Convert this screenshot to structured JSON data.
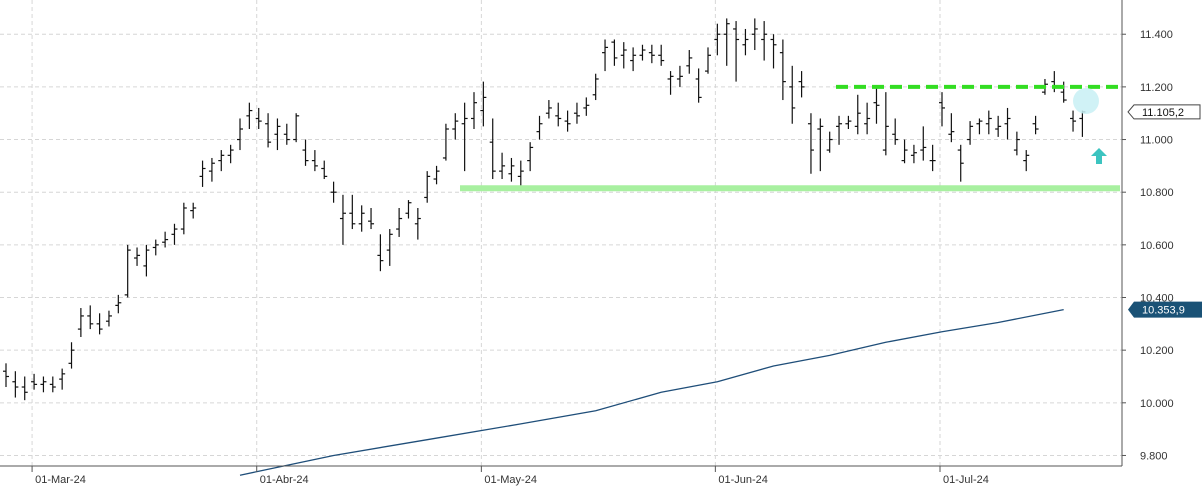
{
  "chart_data": {
    "type": "ohlc",
    "title": "",
    "xlabel": "",
    "ylabel": "",
    "ylim": [
      9760,
      11530
    ],
    "y_ticks": [
      9800,
      10000,
      10200,
      10400,
      10600,
      10800,
      11000,
      11200,
      11400
    ],
    "y_tick_labels": [
      "9.800",
      "10.000",
      "10.200",
      "10.400",
      "10.600",
      "10.800",
      "11.000",
      "11.200",
      "11.400"
    ],
    "x_tick_labels": [
      {
        "label": "01-Mar-24",
        "index": 3
      },
      {
        "label": "01-Abr-24",
        "index": 27
      },
      {
        "label": "01-May-24",
        "index": 51
      },
      {
        "label": "01-Jun-24",
        "index": 76
      },
      {
        "label": "01-Jul-24",
        "index": 100
      }
    ],
    "grid": true,
    "last_price_label": "11.105,2",
    "moving_average_label": "10.353,9",
    "colors": {
      "bars": "#111111",
      "moving_average": "#1f4e79",
      "ma_badge": "#1a5276",
      "resistance": "#33dd22",
      "support": "#a8f0a0",
      "marker_circle": "#c8f0f5",
      "arrow": "#3cc4c0"
    },
    "resistance_level": 11200,
    "support_level": 10815,
    "moving_average": [
      {
        "i": 25,
        "v": 9725
      },
      {
        "i": 27,
        "v": 9740
      },
      {
        "i": 35,
        "v": 9800
      },
      {
        "i": 45,
        "v": 9860
      },
      {
        "i": 55,
        "v": 9920
      },
      {
        "i": 63,
        "v": 9970
      },
      {
        "i": 70,
        "v": 10040
      },
      {
        "i": 76,
        "v": 10080
      },
      {
        "i": 82,
        "v": 10140
      },
      {
        "i": 88,
        "v": 10180
      },
      {
        "i": 94,
        "v": 10230
      },
      {
        "i": 100,
        "v": 10270
      },
      {
        "i": 106,
        "v": 10305
      },
      {
        "i": 113,
        "v": 10354
      }
    ],
    "ohlc": [
      [
        10120,
        10150,
        10060,
        10100
      ],
      [
        10080,
        10120,
        10020,
        10060
      ],
      [
        10060,
        10100,
        10010,
        10040
      ],
      [
        10080,
        10110,
        10050,
        10070
      ],
      [
        10070,
        10100,
        10040,
        10080
      ],
      [
        10070,
        10100,
        10040,
        10060
      ],
      [
        10090,
        10130,
        10050,
        10110
      ],
      [
        10150,
        10230,
        10130,
        10200
      ],
      [
        10280,
        10360,
        10250,
        10330
      ],
      [
        10330,
        10370,
        10280,
        10300
      ],
      [
        10300,
        10340,
        10260,
        10280
      ],
      [
        10310,
        10350,
        10290,
        10330
      ],
      [
        10370,
        10410,
        10340,
        10380
      ],
      [
        10410,
        10600,
        10400,
        10580
      ],
      [
        10550,
        10590,
        10520,
        10560
      ],
      [
        10520,
        10600,
        10480,
        10580
      ],
      [
        10590,
        10620,
        10560,
        10600
      ],
      [
        10610,
        10650,
        10590,
        10620
      ],
      [
        10640,
        10680,
        10600,
        10660
      ],
      [
        10660,
        10760,
        10640,
        10740
      ],
      [
        10730,
        10760,
        10700,
        10740
      ],
      [
        10860,
        10920,
        10820,
        10890
      ],
      [
        10880,
        10930,
        10840,
        10910
      ],
      [
        10920,
        10960,
        10880,
        10940
      ],
      [
        10940,
        10980,
        10910,
        10960
      ],
      [
        11000,
        11080,
        10960,
        11040
      ],
      [
        11090,
        11140,
        11040,
        11110
      ],
      [
        11080,
        11120,
        11040,
        11070
      ],
      [
        11060,
        11100,
        10970,
        10990
      ],
      [
        11020,
        11080,
        10960,
        11050
      ],
      [
        11020,
        11060,
        10980,
        11000
      ],
      [
        11000,
        11100,
        10990,
        11090
      ],
      [
        10960,
        11000,
        10900,
        10920
      ],
      [
        10920,
        10960,
        10880,
        10900
      ],
      [
        10890,
        10920,
        10850,
        10860
      ],
      [
        10800,
        10840,
        10760,
        10800
      ],
      [
        10700,
        10790,
        10600,
        10720
      ],
      [
        10720,
        10790,
        10660,
        10680
      ],
      [
        10680,
        10750,
        10650,
        10720
      ],
      [
        10690,
        10740,
        10660,
        10680
      ],
      [
        10560,
        10640,
        10500,
        10540
      ],
      [
        10580,
        10660,
        10520,
        10640
      ],
      [
        10660,
        10740,
        10630,
        10700
      ],
      [
        10720,
        10770,
        10700,
        10760
      ],
      [
        10680,
        10740,
        10620,
        10700
      ],
      [
        10780,
        10880,
        10760,
        10860
      ],
      [
        10850,
        10900,
        10830,
        10880
      ],
      [
        10930,
        11060,
        10920,
        11040
      ],
      [
        11040,
        11100,
        11000,
        11070
      ],
      [
        11060,
        11140,
        10880,
        11080
      ],
      [
        11080,
        11180,
        11040,
        11140
      ],
      [
        11110,
        11220,
        11050,
        11160
      ],
      [
        10990,
        11080,
        10850,
        10880
      ],
      [
        10880,
        10950,
        10850,
        10900
      ],
      [
        10870,
        10930,
        10840,
        10900
      ],
      [
        10860,
        10920,
        10810,
        10880
      ],
      [
        10920,
        10990,
        10880,
        10970
      ],
      [
        11030,
        11090,
        11000,
        11060
      ],
      [
        11100,
        11150,
        11080,
        11120
      ],
      [
        11090,
        11140,
        11050,
        11080
      ],
      [
        11070,
        11110,
        11030,
        11060
      ],
      [
        11100,
        11140,
        11060,
        11090
      ],
      [
        11120,
        11160,
        11090,
        11130
      ],
      [
        11170,
        11250,
        11150,
        11230
      ],
      [
        11330,
        11380,
        11260,
        11350
      ],
      [
        11370,
        11380,
        11280,
        11310
      ],
      [
        11320,
        11370,
        11270,
        11340
      ],
      [
        11300,
        11350,
        11260,
        11320
      ],
      [
        11320,
        11360,
        11300,
        11340
      ],
      [
        11330,
        11360,
        11290,
        11320
      ],
      [
        11320,
        11360,
        11280,
        11300
      ],
      [
        11230,
        11260,
        11170,
        11240
      ],
      [
        11230,
        11280,
        11200,
        11240
      ],
      [
        11280,
        11340,
        11250,
        11310
      ],
      [
        11230,
        11270,
        11140,
        11160
      ],
      [
        11260,
        11350,
        11250,
        11320
      ],
      [
        11380,
        11440,
        11320,
        11400
      ],
      [
        11400,
        11460,
        11280,
        11440
      ],
      [
        11420,
        11450,
        11220,
        11380
      ],
      [
        11360,
        11420,
        11320,
        11380
      ],
      [
        11400,
        11460,
        11340,
        11420
      ],
      [
        11380,
        11450,
        11300,
        11400
      ],
      [
        11380,
        11400,
        11270,
        11360
      ],
      [
        11330,
        11380,
        11150,
        11220
      ],
      [
        11200,
        11280,
        11060,
        11120
      ],
      [
        11220,
        11260,
        11160,
        11200
      ],
      [
        11060,
        11100,
        10870,
        10960
      ],
      [
        11040,
        11080,
        10880,
        11050
      ],
      [
        10960,
        11030,
        10950,
        11000
      ],
      [
        11050,
        11090,
        10980,
        11060
      ],
      [
        11060,
        11090,
        11040,
        11070
      ],
      [
        11050,
        11170,
        11020,
        11100
      ],
      [
        11060,
        11140,
        11020,
        11080
      ],
      [
        11140,
        11200,
        11060,
        11130
      ],
      [
        10960,
        11180,
        10940,
        11050
      ],
      [
        11020,
        11080,
        10980,
        11000
      ],
      [
        10920,
        11000,
        10910,
        10960
      ],
      [
        10940,
        10980,
        10910,
        10950
      ],
      [
        10960,
        11050,
        10920,
        10970
      ],
      [
        10920,
        10980,
        10880,
        10920
      ],
      [
        11140,
        11180,
        11050,
        11120
      ],
      [
        11020,
        11100,
        10990,
        11030
      ],
      [
        10960,
        10980,
        10840,
        10910
      ],
      [
        11000,
        11070,
        10980,
        11050
      ],
      [
        11060,
        11080,
        11020,
        11070
      ],
      [
        11060,
        11110,
        11020,
        11080
      ],
      [
        11040,
        11090,
        11010,
        11050
      ],
      [
        11060,
        11120,
        11000,
        11080
      ],
      [
        10960,
        11030,
        10940,
        11000
      ],
      [
        10920,
        10960,
        10880,
        10940
      ],
      [
        11060,
        11090,
        11020,
        11040
      ],
      [
        11180,
        11230,
        11170,
        11210
      ],
      [
        11220,
        11260,
        11180,
        11200
      ],
      [
        11180,
        11220,
        11140,
        11150
      ],
      [
        11080,
        11110,
        11030,
        11070
      ],
      [
        11080,
        11110,
        11010,
        11105
      ]
    ]
  }
}
